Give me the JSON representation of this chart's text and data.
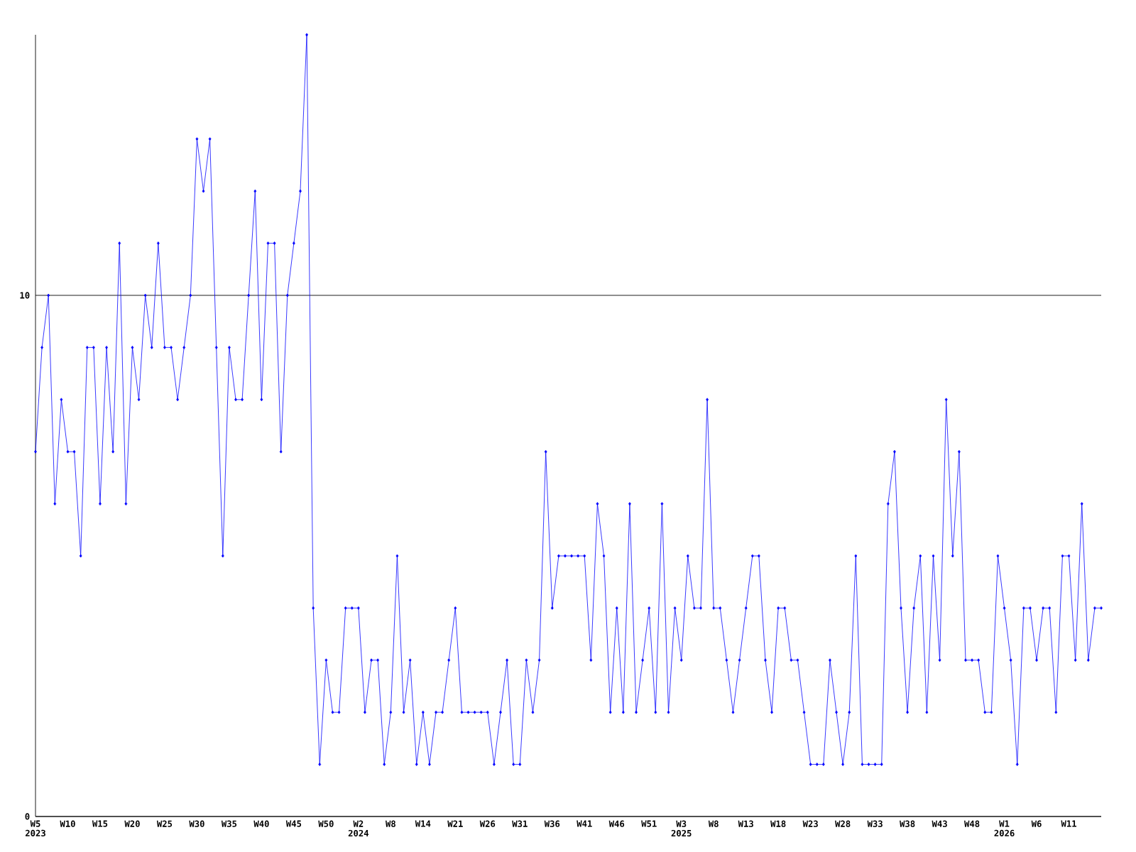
{
  "chart_data": {
    "type": "line",
    "categories": [
      "W5 2023",
      null,
      null,
      null,
      null,
      "W10",
      null,
      null,
      null,
      null,
      "W15",
      null,
      null,
      null,
      null,
      "W20",
      null,
      null,
      null,
      null,
      "W25",
      null,
      null,
      null,
      null,
      "W30",
      null,
      null,
      null,
      null,
      "W35",
      null,
      null,
      null,
      null,
      "W40",
      null,
      null,
      null,
      null,
      "W45",
      null,
      null,
      null,
      null,
      "W50",
      null,
      null,
      null,
      null,
      "W2 2024",
      null,
      null,
      null,
      null,
      "W8",
      null,
      null,
      null,
      null,
      "W14",
      null,
      null,
      null,
      null,
      "W21",
      null,
      null,
      null,
      null,
      "W26",
      null,
      null,
      null,
      null,
      "W31",
      null,
      null,
      null,
      null,
      "W36",
      null,
      null,
      null,
      null,
      "W41",
      null,
      null,
      null,
      null,
      "W46",
      null,
      null,
      null,
      null,
      "W51",
      null,
      null,
      null,
      null,
      "W3 2025",
      null,
      null,
      null,
      null,
      "W8",
      null,
      null,
      null,
      null,
      "W13",
      null,
      null,
      null,
      null,
      "W18",
      null,
      null,
      null,
      null,
      "W23",
      null,
      null,
      null,
      null,
      "W28",
      null,
      null,
      null,
      null,
      "W33",
      null,
      null,
      null,
      null,
      "W38",
      null,
      null,
      null,
      null,
      "W43",
      null,
      null,
      null,
      null,
      "W48",
      null,
      null,
      null,
      null,
      "W1 2026",
      null,
      null,
      null,
      null,
      "W6",
      null,
      null,
      null,
      null,
      "W11",
      null,
      null,
      null,
      null,
      null
    ],
    "values": [
      7,
      9,
      10,
      6,
      8,
      7,
      7,
      5,
      9,
      9,
      6,
      9,
      7,
      11,
      6,
      9,
      8,
      10,
      9,
      11,
      9,
      9,
      8,
      9,
      10,
      13,
      12,
      13,
      9,
      5,
      9,
      8,
      8,
      10,
      12,
      8,
      11,
      11,
      7,
      10,
      11,
      12,
      15,
      4,
      1,
      3,
      2,
      2,
      4,
      4,
      4,
      2,
      3,
      3,
      1,
      2,
      5,
      2,
      3,
      1,
      2,
      1,
      2,
      2,
      3,
      4,
      2,
      2,
      2,
      2,
      2,
      1,
      2,
      3,
      1,
      1,
      3,
      2,
      3,
      7,
      4,
      5,
      5,
      5,
      5,
      5,
      3,
      6,
      5,
      2,
      4,
      2,
      6,
      2,
      3,
      4,
      2,
      6,
      2,
      4,
      3,
      5,
      4,
      4,
      8,
      4,
      4,
      3,
      2,
      3,
      4,
      5,
      5,
      3,
      2,
      4,
      4,
      3,
      3,
      2,
      1,
      1,
      1,
      3,
      2,
      1,
      2,
      5,
      1,
      1,
      1,
      1,
      6,
      7,
      4,
      2,
      4,
      5,
      2,
      5,
      3,
      8,
      5,
      7,
      3,
      3,
      3,
      2,
      2,
      5,
      4,
      3,
      1,
      4,
      4,
      3,
      4,
      4,
      2,
      5,
      5,
      3,
      6,
      3,
      4,
      4
    ],
    "color": "#0000ff",
    "marker": "diamond",
    "ylim": [
      0,
      15
    ],
    "yticks": [
      0,
      10
    ],
    "grid": "y"
  }
}
